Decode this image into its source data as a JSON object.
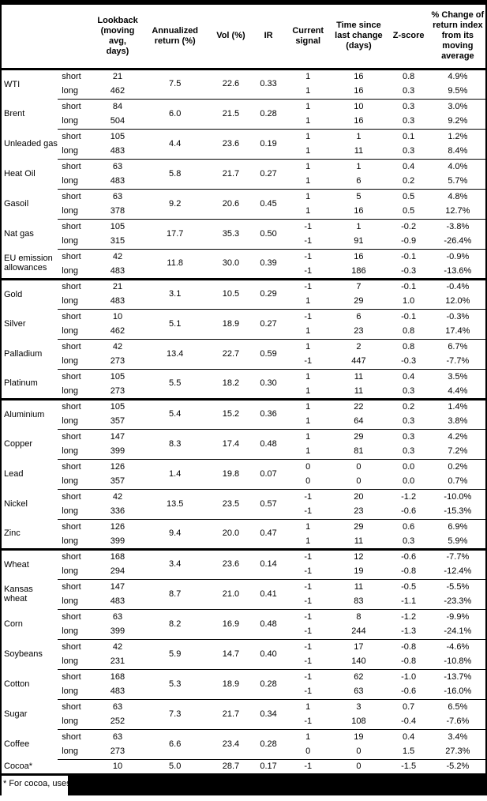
{
  "colors": {
    "text": "#000000",
    "background": "#ffffff",
    "border": "#000000",
    "redaction": "#000000"
  },
  "header": {
    "columns": [
      {
        "id": "commodity",
        "label": ""
      },
      {
        "id": "leg",
        "label": ""
      },
      {
        "id": "lookback",
        "label": "Lookback (moving avg, days)"
      },
      {
        "id": "annualized_return",
        "label": "Annualized return (%)"
      },
      {
        "id": "vol",
        "label": "Vol (%)"
      },
      {
        "id": "ir",
        "label": "IR"
      },
      {
        "id": "current_signal",
        "label": "Current signal"
      },
      {
        "id": "time_since_last_change",
        "label": "Time since last change (days)"
      },
      {
        "id": "z_score",
        "label": "Z-score"
      },
      {
        "id": "pct_change",
        "label": "% Change of return index from its moving average"
      }
    ]
  },
  "groups": [
    {
      "commodities": [
        {
          "name": "WTI",
          "annualized_return": "7.5",
          "vol": "22.6",
          "ir": "0.33",
          "legs": [
            {
              "leg": "short",
              "lookback": "21",
              "signal": "1",
              "time_since": "16",
              "z_score": "0.8",
              "pct_change": "4.9%"
            },
            {
              "leg": "long",
              "lookback": "462",
              "signal": "1",
              "time_since": "16",
              "z_score": "0.3",
              "pct_change": "9.5%"
            }
          ]
        },
        {
          "name": "Brent",
          "annualized_return": "6.0",
          "vol": "21.5",
          "ir": "0.28",
          "legs": [
            {
              "leg": "short",
              "lookback": "84",
              "signal": "1",
              "time_since": "10",
              "z_score": "0.3",
              "pct_change": "3.0%"
            },
            {
              "leg": "long",
              "lookback": "504",
              "signal": "1",
              "time_since": "16",
              "z_score": "0.3",
              "pct_change": "9.2%"
            }
          ]
        },
        {
          "name": "Unleaded gas",
          "annualized_return": "4.4",
          "vol": "23.6",
          "ir": "0.19",
          "legs": [
            {
              "leg": "short",
              "lookback": "105",
              "signal": "1",
              "time_since": "1",
              "z_score": "0.1",
              "pct_change": "1.2%"
            },
            {
              "leg": "long",
              "lookback": "483",
              "signal": "1",
              "time_since": "11",
              "z_score": "0.3",
              "pct_change": "8.4%"
            }
          ]
        },
        {
          "name": "Heat Oil",
          "annualized_return": "5.8",
          "vol": "21.7",
          "ir": "0.27",
          "legs": [
            {
              "leg": "short",
              "lookback": "63",
              "signal": "1",
              "time_since": "1",
              "z_score": "0.4",
              "pct_change": "4.0%"
            },
            {
              "leg": "long",
              "lookback": "483",
              "signal": "1",
              "time_since": "6",
              "z_score": "0.2",
              "pct_change": "5.7%"
            }
          ]
        },
        {
          "name": "Gasoil",
          "annualized_return": "9.2",
          "vol": "20.6",
          "ir": "0.45",
          "legs": [
            {
              "leg": "short",
              "lookback": "63",
              "signal": "1",
              "time_since": "5",
              "z_score": "0.5",
              "pct_change": "4.8%"
            },
            {
              "leg": "long",
              "lookback": "378",
              "signal": "1",
              "time_since": "16",
              "z_score": "0.5",
              "pct_change": "12.7%"
            }
          ]
        },
        {
          "name": "Nat gas",
          "annualized_return": "17.7",
          "vol": "35.3",
          "ir": "0.50",
          "legs": [
            {
              "leg": "short",
              "lookback": "105",
              "signal": "-1",
              "time_since": "1",
              "z_score": "-0.2",
              "pct_change": "-3.8%"
            },
            {
              "leg": "long",
              "lookback": "315",
              "signal": "-1",
              "time_since": "91",
              "z_score": "-0.9",
              "pct_change": "-26.4%"
            }
          ]
        },
        {
          "name": "EU emission allowances",
          "annualized_return": "11.8",
          "vol": "30.0",
          "ir": "0.39",
          "legs": [
            {
              "leg": "short",
              "lookback": "42",
              "signal": "-1",
              "time_since": "16",
              "z_score": "-0.1",
              "pct_change": "-0.9%"
            },
            {
              "leg": "long",
              "lookback": "483",
              "signal": "-1",
              "time_since": "186",
              "z_score": "-0.3",
              "pct_change": "-13.6%"
            }
          ]
        }
      ]
    },
    {
      "commodities": [
        {
          "name": "Gold",
          "annualized_return": "3.1",
          "vol": "10.5",
          "ir": "0.29",
          "legs": [
            {
              "leg": "short",
              "lookback": "21",
              "signal": "-1",
              "time_since": "7",
              "z_score": "-0.1",
              "pct_change": "-0.4%"
            },
            {
              "leg": "long",
              "lookback": "483",
              "signal": "1",
              "time_since": "29",
              "z_score": "1.0",
              "pct_change": "12.0%"
            }
          ]
        },
        {
          "name": "Silver",
          "annualized_return": "5.1",
          "vol": "18.9",
          "ir": "0.27",
          "legs": [
            {
              "leg": "short",
              "lookback": "10",
              "signal": "-1",
              "time_since": "6",
              "z_score": "-0.1",
              "pct_change": "-0.3%"
            },
            {
              "leg": "long",
              "lookback": "462",
              "signal": "1",
              "time_since": "23",
              "z_score": "0.8",
              "pct_change": "17.4%"
            }
          ]
        },
        {
          "name": "Palladium",
          "annualized_return": "13.4",
          "vol": "22.7",
          "ir": "0.59",
          "legs": [
            {
              "leg": "short",
              "lookback": "42",
              "signal": "1",
              "time_since": "2",
              "z_score": "0.8",
              "pct_change": "6.7%"
            },
            {
              "leg": "long",
              "lookback": "273",
              "signal": "-1",
              "time_since": "447",
              "z_score": "-0.3",
              "pct_change": "-7.7%"
            }
          ]
        },
        {
          "name": "Platinum",
          "annualized_return": "5.5",
          "vol": "18.2",
          "ir": "0.30",
          "legs": [
            {
              "leg": "short",
              "lookback": "105",
              "signal": "1",
              "time_since": "11",
              "z_score": "0.4",
              "pct_change": "3.5%"
            },
            {
              "leg": "long",
              "lookback": "273",
              "signal": "1",
              "time_since": "11",
              "z_score": "0.3",
              "pct_change": "4.4%"
            }
          ]
        }
      ]
    },
    {
      "commodities": [
        {
          "name": "Aluminium",
          "annualized_return": "5.4",
          "vol": "15.2",
          "ir": "0.36",
          "legs": [
            {
              "leg": "short",
              "lookback": "105",
              "signal": "1",
              "time_since": "22",
              "z_score": "0.2",
              "pct_change": "1.4%"
            },
            {
              "leg": "long",
              "lookback": "357",
              "signal": "1",
              "time_since": "64",
              "z_score": "0.3",
              "pct_change": "3.8%"
            }
          ]
        },
        {
          "name": "Copper",
          "annualized_return": "8.3",
          "vol": "17.4",
          "ir": "0.48",
          "legs": [
            {
              "leg": "short",
              "lookback": "147",
              "signal": "1",
              "time_since": "29",
              "z_score": "0.3",
              "pct_change": "4.2%"
            },
            {
              "leg": "long",
              "lookback": "399",
              "signal": "1",
              "time_since": "81",
              "z_score": "0.3",
              "pct_change": "7.2%"
            }
          ]
        },
        {
          "name": "Lead",
          "annualized_return": "1.4",
          "vol": "19.8",
          "ir": "0.07",
          "legs": [
            {
              "leg": "short",
              "lookback": "126",
              "signal": "0",
              "time_since": "0",
              "z_score": "0.0",
              "pct_change": "0.2%"
            },
            {
              "leg": "long",
              "lookback": "357",
              "signal": "0",
              "time_since": "0",
              "z_score": "0.0",
              "pct_change": "0.7%"
            }
          ]
        },
        {
          "name": "Nickel",
          "annualized_return": "13.5",
          "vol": "23.5",
          "ir": "0.57",
          "legs": [
            {
              "leg": "short",
              "lookback": "42",
              "signal": "-1",
              "time_since": "20",
              "z_score": "-1.2",
              "pct_change": "-10.0%"
            },
            {
              "leg": "long",
              "lookback": "336",
              "signal": "-1",
              "time_since": "23",
              "z_score": "-0.6",
              "pct_change": "-15.3%"
            }
          ]
        },
        {
          "name": "Zinc",
          "annualized_return": "9.4",
          "vol": "20.0",
          "ir": "0.47",
          "legs": [
            {
              "leg": "short",
              "lookback": "126",
              "signal": "1",
              "time_since": "29",
              "z_score": "0.6",
              "pct_change": "6.9%"
            },
            {
              "leg": "long",
              "lookback": "399",
              "signal": "1",
              "time_since": "11",
              "z_score": "0.3",
              "pct_change": "5.9%"
            }
          ]
        }
      ]
    },
    {
      "commodities": [
        {
          "name": "Wheat",
          "annualized_return": "3.4",
          "vol": "23.6",
          "ir": "0.14",
          "legs": [
            {
              "leg": "short",
              "lookback": "168",
              "signal": "-1",
              "time_since": "12",
              "z_score": "-0.6",
              "pct_change": "-7.7%"
            },
            {
              "leg": "long",
              "lookback": "294",
              "signal": "-1",
              "time_since": "19",
              "z_score": "-0.8",
              "pct_change": "-12.4%"
            }
          ]
        },
        {
          "name": "Kansas wheat",
          "annualized_return": "8.7",
          "vol": "21.0",
          "ir": "0.41",
          "legs": [
            {
              "leg": "short",
              "lookback": "147",
              "signal": "-1",
              "time_since": "11",
              "z_score": "-0.5",
              "pct_change": "-5.5%"
            },
            {
              "leg": "long",
              "lookback": "483",
              "signal": "-1",
              "time_since": "83",
              "z_score": "-1.1",
              "pct_change": "-23.3%"
            }
          ]
        },
        {
          "name": "Corn",
          "annualized_return": "8.2",
          "vol": "16.9",
          "ir": "0.48",
          "legs": [
            {
              "leg": "short",
              "lookback": "63",
              "signal": "-1",
              "time_since": "8",
              "z_score": "-1.2",
              "pct_change": "-9.9%"
            },
            {
              "leg": "long",
              "lookback": "399",
              "signal": "-1",
              "time_since": "244",
              "z_score": "-1.3",
              "pct_change": "-24.1%"
            }
          ]
        },
        {
          "name": "Soybeans",
          "annualized_return": "5.9",
          "vol": "14.7",
          "ir": "0.40",
          "legs": [
            {
              "leg": "short",
              "lookback": "42",
              "signal": "-1",
              "time_since": "17",
              "z_score": "-0.8",
              "pct_change": "-4.6%"
            },
            {
              "leg": "long",
              "lookback": "231",
              "signal": "-1",
              "time_since": "140",
              "z_score": "-0.8",
              "pct_change": "-10.8%"
            }
          ]
        },
        {
          "name": "Cotton",
          "annualized_return": "5.3",
          "vol": "18.9",
          "ir": "0.28",
          "legs": [
            {
              "leg": "short",
              "lookback": "168",
              "signal": "-1",
              "time_since": "62",
              "z_score": "-1.0",
              "pct_change": "-13.7%"
            },
            {
              "leg": "long",
              "lookback": "483",
              "signal": "-1",
              "time_since": "63",
              "z_score": "-0.6",
              "pct_change": "-16.0%"
            }
          ]
        },
        {
          "name": "Sugar",
          "annualized_return": "7.3",
          "vol": "21.7",
          "ir": "0.34",
          "legs": [
            {
              "leg": "short",
              "lookback": "63",
              "signal": "1",
              "time_since": "3",
              "z_score": "0.7",
              "pct_change": "6.5%"
            },
            {
              "leg": "long",
              "lookback": "252",
              "signal": "-1",
              "time_since": "108",
              "z_score": "-0.4",
              "pct_change": "-7.6%"
            }
          ]
        },
        {
          "name": "Coffee",
          "annualized_return": "6.6",
          "vol": "23.4",
          "ir": "0.28",
          "legs": [
            {
              "leg": "short",
              "lookback": "63",
              "signal": "1",
              "time_since": "19",
              "z_score": "0.4",
              "pct_change": "3.4%"
            },
            {
              "leg": "long",
              "lookback": "273",
              "signal": "0",
              "time_since": "0",
              "z_score": "1.5",
              "pct_change": "27.3%"
            }
          ]
        },
        {
          "name": "Cocoa*",
          "annualized_return": "5.0",
          "vol": "28.7",
          "ir": "0.17",
          "legs": [
            {
              "leg": "",
              "lookback": "10",
              "signal": "-1",
              "time_since": "0",
              "z_score": "-1.5",
              "pct_change": "-5.2%"
            }
          ]
        }
      ]
    }
  ],
  "footnote": {
    "text": "* For cocoa, uses o"
  }
}
